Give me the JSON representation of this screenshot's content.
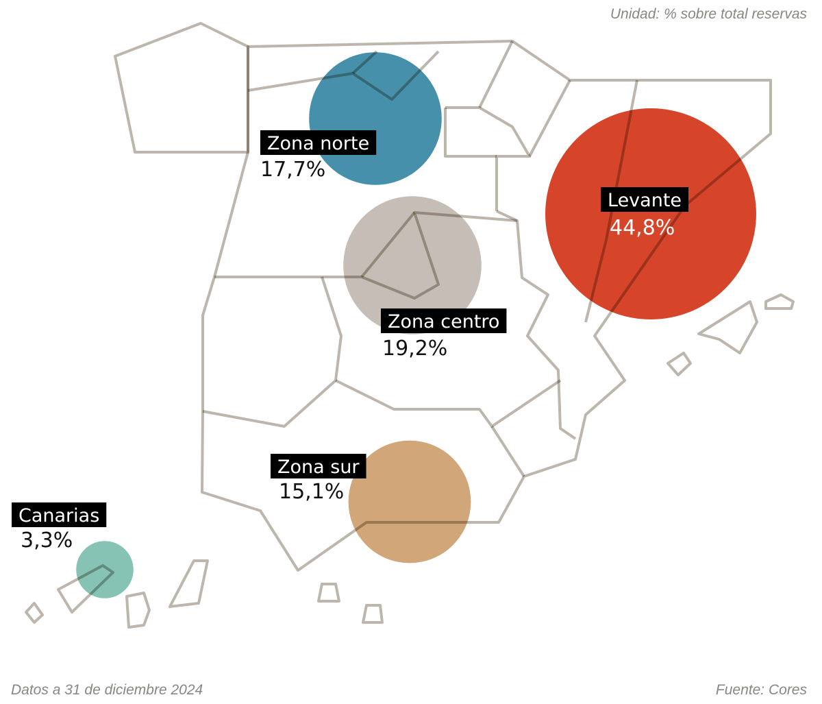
{
  "unit_note": "Unidad: % sobre total reservas",
  "zones": [
    {
      "name": "Zona norte",
      "value": 17.7,
      "value_label": "17,7%",
      "color": "#3d8aa6"
    },
    {
      "name": "Levante",
      "value": 44.8,
      "value_label": "44,8%",
      "color": "#d43a1e"
    },
    {
      "name": "Zona centro",
      "value": 19.2,
      "value_label": "19,2%",
      "color": "#c3bbb2"
    },
    {
      "name": "Zona sur",
      "value": 15.1,
      "value_label": "15,1%",
      "color": "#cfa172"
    },
    {
      "name": "Canarias",
      "value": 3.3,
      "value_label": "3,3%",
      "color": "#80c0b1"
    }
  ],
  "footnote": "Datos a 31 de diciembre 2024",
  "source": "Fuente: Cores"
}
